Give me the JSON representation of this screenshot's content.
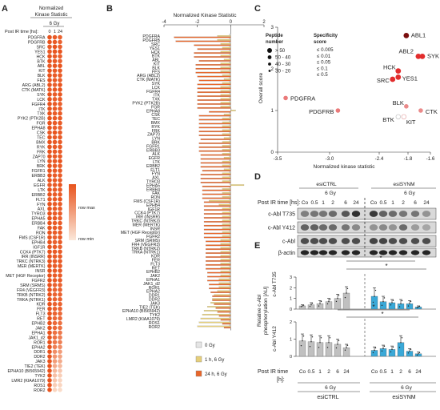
{
  "panel_letters": {
    "a": "A",
    "b": "B",
    "c": "C",
    "d": "D",
    "e": "E"
  },
  "kinases": [
    "PDGFRA",
    "PDGFRB",
    "SRC",
    "YES1",
    "HCK",
    "BTK",
    "ABL",
    "KIT",
    "BLK",
    "FES",
    "ARG (ABL2)",
    "CTK (MATK)",
    "SYK",
    "LCK",
    "FGFR4",
    "ITK",
    "TXK",
    "PYK2 (PTK2B)",
    "FGR",
    "EPHA8",
    "CSK",
    "TEC",
    "BMX",
    "RYK",
    "FRK",
    "ZAP70",
    "LYN",
    "BRK",
    "FGFR1",
    "ERBB3",
    "ALK",
    "EGFR",
    "LTK",
    "ERBB2",
    "FLT1",
    "FYN",
    "AXL",
    "TYRO3",
    "EPHA5",
    "ERBB4",
    "FAK",
    "RON",
    "FMS (CSF1R)",
    "EPHB4",
    "IGF1R",
    "CCK4 (PTK7)",
    "IRR (INSRR)",
    "TRKC (NTRK3)",
    "MER (MERTK)",
    "INSR",
    "MET (HGF Receptor)",
    "FGFR2",
    "SRM (SRMS)",
    "FR4 (VEGFR3)",
    "TRKB (NTRK2)",
    "TRKA (NTRK1)",
    "KDR",
    "FER",
    "FLT3",
    "RET",
    "EPHB2",
    "JAK2",
    "EPHA1",
    "JAK1_d2",
    "ROR1",
    "EPHA2",
    "DDR1",
    "DDR2",
    "JAK3",
    "TIE2 (TEK)",
    "EPHA10 (BI565942)",
    "TYK2",
    "LMR2 (KIAA1079)",
    "ROS1",
    "ROR2"
  ],
  "panel_a": {
    "title_l1": "Normalized",
    "title_l2": "Kinase Statistic",
    "dose": "6 Gy",
    "time_label": "Post IR time [hs]:",
    "times": [
      "0",
      "1",
      "24"
    ],
    "legend_max": "row max",
    "legend_min": "row min",
    "colors": {
      "high": "#e8541e",
      "low": "#fbe3d2"
    },
    "levels": [
      [
        1,
        0.95,
        0.9
      ],
      [
        1,
        0.95,
        0.9
      ],
      [
        0.95,
        1,
        0.92
      ],
      [
        0.95,
        0.98,
        1
      ],
      [
        1,
        0.95,
        0.92
      ],
      [
        1,
        0.95,
        0.9
      ],
      [
        0.95,
        0.98,
        1
      ],
      [
        1,
        0.95,
        0.95
      ],
      [
        1,
        0.95,
        0.95
      ],
      [
        1,
        0.95,
        0.92
      ],
      [
        0.98,
        0.92,
        1
      ],
      [
        0.95,
        0.98,
        1
      ],
      [
        1,
        0.95,
        0.98
      ],
      [
        1,
        0.92,
        0.95
      ],
      [
        1,
        0.95,
        0.92
      ],
      [
        1,
        0.95,
        0.95
      ],
      [
        1,
        0.95,
        0.95
      ],
      [
        1,
        0.95,
        0.95
      ],
      [
        1,
        0.95,
        0.95
      ],
      [
        1,
        0.92,
        0.9
      ],
      [
        0.95,
        1,
        0.95
      ],
      [
        1,
        0.95,
        0.95
      ],
      [
        1,
        0.95,
        0.95
      ],
      [
        1,
        0.95,
        0.95
      ],
      [
        1,
        0.95,
        0.95
      ],
      [
        1,
        0.95,
        0.95
      ],
      [
        0.95,
        0.95,
        1
      ],
      [
        1,
        0.95,
        0.95
      ],
      [
        1,
        0.95,
        0.95
      ],
      [
        1,
        0.95,
        0.95
      ],
      [
        1,
        0.95,
        0.95
      ],
      [
        0.95,
        0.95,
        1
      ],
      [
        1,
        0.95,
        0.95
      ],
      [
        1,
        0.95,
        0.95
      ],
      [
        0.95,
        0.95,
        1
      ],
      [
        1,
        0.95,
        0.95
      ],
      [
        1,
        0.95,
        0.95
      ],
      [
        1,
        0.95,
        0.95
      ],
      [
        1,
        0.95,
        0.9
      ],
      [
        1,
        0.95,
        0.95
      ],
      [
        1,
        0.95,
        0.95
      ],
      [
        1,
        0.95,
        0.95
      ],
      [
        1,
        0.9,
        0.95
      ],
      [
        1,
        0.9,
        0.95
      ],
      [
        1,
        0.95,
        0.9
      ],
      [
        1,
        0.95,
        0.95
      ],
      [
        1,
        0.95,
        0.95
      ],
      [
        1,
        0.95,
        0.95
      ],
      [
        1,
        0.95,
        0.95
      ],
      [
        1,
        0.95,
        0.95
      ],
      [
        1,
        0.95,
        0.95
      ],
      [
        1,
        0.95,
        0.95
      ],
      [
        1,
        0.9,
        0.9
      ],
      [
        1,
        0.9,
        0.9
      ],
      [
        1,
        0.9,
        0.9
      ],
      [
        1,
        0.9,
        0.9
      ],
      [
        1,
        0.9,
        0.9
      ],
      [
        1,
        0.9,
        0.9
      ],
      [
        1,
        0.9,
        0.85
      ],
      [
        1,
        0.85,
        0.85
      ],
      [
        1,
        0.85,
        0.8
      ],
      [
        1,
        0.85,
        0.8
      ],
      [
        1,
        0.8,
        0.75
      ],
      [
        1,
        0.8,
        0.7
      ],
      [
        1,
        0.75,
        0.7
      ],
      [
        1,
        0.7,
        0.6
      ],
      [
        1,
        0.6,
        0.5
      ],
      [
        1,
        0.55,
        0.45
      ],
      [
        1,
        0.5,
        0.4
      ],
      [
        1,
        0.4,
        0.3
      ],
      [
        1,
        0.3,
        0.2
      ],
      [
        1,
        0.25,
        0.15
      ],
      [
        1,
        0.2,
        0.1
      ],
      [
        1,
        0.15,
        0.1
      ],
      [
        1,
        0.1,
        0.05
      ]
    ]
  },
  "chart_data": [
    {
      "type": "bar",
      "panel": "B",
      "title": "Normalized Kinase Statistic",
      "xlim": [
        -4,
        2
      ],
      "xticks": [
        "-4",
        "-2",
        "0",
        "2"
      ],
      "series_colors": [
        "#e5e5e5",
        "#e6cf7a",
        "#e8662a"
      ],
      "series": [
        {
          "name": "0 Gy",
          "values": [
            -0.1,
            -0.1,
            -0.1,
            -0.1,
            -0.1,
            -0.1,
            -0.1,
            -0.1,
            -0.1,
            -0.1,
            -0.1,
            -0.1,
            -0.1,
            -0.1,
            -0.1,
            -0.1,
            -0.1,
            -0.1,
            -0.1,
            0.05,
            -0.1,
            -0.1,
            -0.1,
            -0.1,
            -0.1,
            -0.1,
            -0.1,
            -0.1,
            -0.1,
            -0.1,
            -0.1,
            -0.1,
            -0.1,
            -0.1,
            -0.1,
            -0.1,
            -0.1,
            -0.1,
            -0.1,
            -0.1,
            -0.1,
            -0.1,
            -0.1,
            -0.1,
            -0.1,
            -0.1,
            -0.1,
            -0.1,
            -0.1,
            -0.1,
            -0.1,
            -0.1,
            -0.1,
            -0.1,
            -0.1,
            -0.1,
            -0.1,
            -0.1,
            -0.1,
            -0.1,
            -0.1,
            -0.1,
            -0.1,
            -0.1,
            -0.1,
            -0.1,
            -0.1,
            -0.1,
            -0.1,
            -0.1,
            -0.1,
            -0.1,
            -0.1,
            -0.1,
            -0.1
          ]
        },
        {
          "name": "1 h, 6 Gy",
          "values": [
            -0.8,
            -0.8,
            -0.6,
            -0.5,
            -0.6,
            -0.6,
            -0.4,
            -0.6,
            -0.6,
            -0.6,
            -0.5,
            -0.4,
            -0.5,
            -0.6,
            -0.6,
            -0.6,
            -0.6,
            -0.6,
            -0.6,
            0.3,
            -0.4,
            -0.5,
            -0.5,
            -0.5,
            -0.5,
            -0.5,
            -0.4,
            -0.5,
            -0.5,
            -0.5,
            -0.5,
            -0.4,
            -0.5,
            -0.5,
            -0.4,
            -0.5,
            -0.5,
            -0.5,
            0.8,
            -0.5,
            -0.5,
            -0.5,
            -1.3,
            -0.7,
            -0.5,
            -0.5,
            -0.5,
            -0.5,
            -0.5,
            -0.5,
            -0.5,
            -0.5,
            -0.6,
            -0.6,
            -0.6,
            -0.6,
            -0.6,
            -0.6,
            -0.6,
            -0.6,
            -0.6,
            -0.6,
            -0.7,
            -0.7,
            -0.7,
            -0.8,
            -1.0,
            -1.1,
            -1.2,
            -1.4,
            -1.6,
            -1.7,
            -1.8,
            -1.9,
            -2.0
          ]
        },
        {
          "name": "24 h, 6 Gy",
          "values": [
            -3.4,
            -3.3,
            -2.2,
            -2.0,
            -2.2,
            -2.2,
            -1.9,
            -2.1,
            -2.1,
            -2.1,
            -2.0,
            -1.9,
            -2.0,
            -2.0,
            -2.0,
            -2.0,
            -2.0,
            -2.0,
            -2.0,
            -1.3,
            -1.9,
            -1.9,
            -1.9,
            -1.9,
            -1.9,
            -1.9,
            -1.8,
            -1.9,
            -1.9,
            -1.9,
            -1.8,
            -1.8,
            -1.8,
            -1.8,
            -1.7,
            -1.8,
            -1.8,
            -1.8,
            -1.7,
            -1.7,
            -1.7,
            -1.7,
            -1.6,
            -1.6,
            -1.6,
            -1.6,
            -1.6,
            -1.6,
            -1.6,
            -1.6,
            -1.6,
            -1.6,
            -1.5,
            -1.5,
            -1.5,
            -1.5,
            -1.5,
            -1.5,
            -1.5,
            -1.5,
            -1.4,
            -1.4,
            -1.4,
            -1.3,
            -1.3,
            -1.2,
            -1.1,
            -1.1,
            -1.0,
            -0.9,
            -0.8,
            -0.7,
            -0.6,
            -0.5,
            -0.4
          ]
        }
      ]
    },
    {
      "type": "scatter",
      "panel": "C",
      "xlabel": "Normalized kinase statistic",
      "ylabel": "Overall score",
      "xlim": [
        -3.5,
        -1.6
      ],
      "ylim": [
        0,
        3
      ],
      "xticks": [
        "-3.5",
        "-3.0",
        "-2.4",
        "-1.8",
        "-1.6"
      ],
      "yticks": [
        "0",
        "1",
        "2",
        "3"
      ],
      "size_legend_title": [
        "Peptide",
        "number"
      ],
      "size_legend": [
        "> 50",
        "50 - 40",
        "40 - 30",
        "30 - 20"
      ],
      "color_legend_title": [
        "Specificity",
        "score"
      ],
      "color_legend": [
        "≤ 0.005",
        "≤ 0.01",
        "≤ 0.05",
        "≤ 0.1",
        "≤ 0.5"
      ],
      "color_legend_colors": [
        "#d01818",
        "#e03030",
        "#ec7070",
        "#f2a8a8",
        "#f8d4d4"
      ],
      "points": [
        {
          "name": "ABL1",
          "x": -1.9,
          "y": 2.8,
          "color": "#7a0e0e",
          "size": 3
        },
        {
          "name": "ABL2",
          "x": -1.75,
          "y": 2.3,
          "color": "#e22d2d",
          "size": 3
        },
        {
          "name": "SYK",
          "x": -1.7,
          "y": 2.3,
          "color": "#e22d2d",
          "size": 3
        },
        {
          "name": "HCK",
          "x": -2.0,
          "y": 1.95,
          "color": "#e22d2d",
          "size": 3
        },
        {
          "name": "SRC",
          "x": -2.07,
          "y": 1.75,
          "color": "#e22d2d",
          "size": 3
        },
        {
          "name": "YES1",
          "x": -2.0,
          "y": 1.8,
          "color": "#e22d2d",
          "size": 3
        },
        {
          "name": "PDGFRA",
          "x": -3.4,
          "y": 1.3,
          "color": "#ea7a7a",
          "size": 2
        },
        {
          "name": "PDGFRB",
          "x": -2.75,
          "y": 1.0,
          "color": "#ea7a7a",
          "size": 2
        },
        {
          "name": "BLK",
          "x": -1.9,
          "y": 1.1,
          "color": "#ea8a8a",
          "size": 2
        },
        {
          "name": "CTK",
          "x": -1.72,
          "y": 1.0,
          "color": "#ea8a8a",
          "size": 2
        },
        {
          "name": "BTK",
          "x": -2.0,
          "y": 0.85,
          "color": "#c8c8c8",
          "size": 2
        },
        {
          "name": "KIT",
          "x": -1.93,
          "y": 0.85,
          "color": "#e9b3b3",
          "size": 2
        }
      ]
    },
    {
      "type": "bar",
      "panel": "E-top",
      "ylabel": "c-Abl T735",
      "ylim": [
        0,
        3
      ],
      "categories": [
        "Co",
        "0.5",
        "1",
        "2",
        "6",
        "24",
        "Co",
        "0.5",
        "1",
        "2",
        "6",
        "24"
      ],
      "series": [
        {
          "name": "",
          "values": [
            0.3,
            0.4,
            0.5,
            0.7,
            1.0,
            1.5,
            1.2,
            0.7,
            0.6,
            0.5,
            0.5,
            0.2
          ]
        }
      ],
      "error": [
        0.1,
        0.2,
        0.3,
        0.3,
        0.4,
        0.6,
        0.8,
        0.5,
        0.3,
        0.4,
        0.3,
        0.1
      ],
      "group_colors": [
        "#c0c0c0",
        "#3aa9d8"
      ]
    },
    {
      "type": "bar",
      "panel": "E-bottom",
      "ylabel": "c-Abl Y412",
      "ylim": [
        0,
        2
      ],
      "categories": [
        "Co",
        "0.5",
        "1",
        "2",
        "6",
        "24",
        "Co",
        "0.5",
        "1",
        "2",
        "6",
        "24"
      ],
      "series": [
        {
          "name": "",
          "values": [
            0.9,
            0.85,
            0.8,
            0.8,
            0.7,
            0.5,
            0.35,
            0.45,
            0.4,
            0.8,
            0.3,
            0.15
          ]
        }
      ],
      "error": [
        0.4,
        0.4,
        0.4,
        0.4,
        0.3,
        0.2,
        0.2,
        0.2,
        0.2,
        0.4,
        0.15,
        0.1
      ],
      "group_colors": [
        "#c0c0c0",
        "#3aa9d8"
      ]
    }
  ],
  "panel_b_legend": [
    "0 Gy",
    "1 h, 6 Gy",
    "24 h, 6 Gy"
  ],
  "panel_d": {
    "col_left": "esiCTRL",
    "col_right": "esiSYNM",
    "dose_left": "6 Gy",
    "dose_right": "6 Gy",
    "time_label": "Post IR time [hs]:",
    "times": [
      "Co",
      "0.5",
      "1",
      "2",
      "6",
      "24",
      "Co",
      "0.5",
      "1",
      "2",
      "6",
      "24"
    ],
    "rows": [
      "c-Abl T735",
      "c-Abl Y412",
      "c-Abl",
      "β-actin"
    ]
  },
  "panel_e": {
    "ylabel_l1": "Relative c-Abl",
    "ylabel_l2": "phosphorylation  [AU]",
    "time_label": "Post IR time",
    "time_unit": "[h]:",
    "dose": "6 Gy",
    "group_left": "esiCTRL",
    "group_right": "esiSYNM",
    "star": "*"
  }
}
